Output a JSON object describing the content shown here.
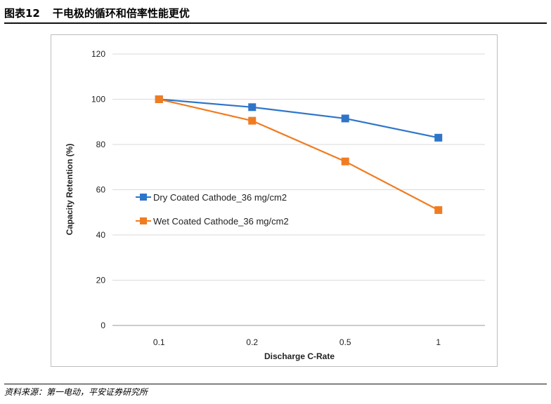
{
  "header": {
    "fig_no": "图表12",
    "title": "干电极的循环和倍率性能更优"
  },
  "footer": {
    "source": "资料来源：第一电动，平安证券研究所"
  },
  "chart_data": {
    "type": "line",
    "categories": [
      "0.1",
      "0.2",
      "0.5",
      "1"
    ],
    "series": [
      {
        "name": "Dry Coated Cathode_36 mg/cm2",
        "values": [
          100,
          96.5,
          91.5,
          83
        ],
        "color": "#2e75c9"
      },
      {
        "name": "Wet Coated Cathode_36 mg/cm2",
        "values": [
          100,
          90.5,
          72.5,
          51
        ],
        "color": "#f07c22"
      }
    ],
    "xlabel": "Discharge C-Rate",
    "ylabel": "Capacity Retention (%)",
    "ylim": [
      0,
      120
    ],
    "yticks": [
      0,
      20,
      40,
      60,
      80,
      100,
      120
    ],
    "grid": true,
    "legend": "left-center"
  }
}
